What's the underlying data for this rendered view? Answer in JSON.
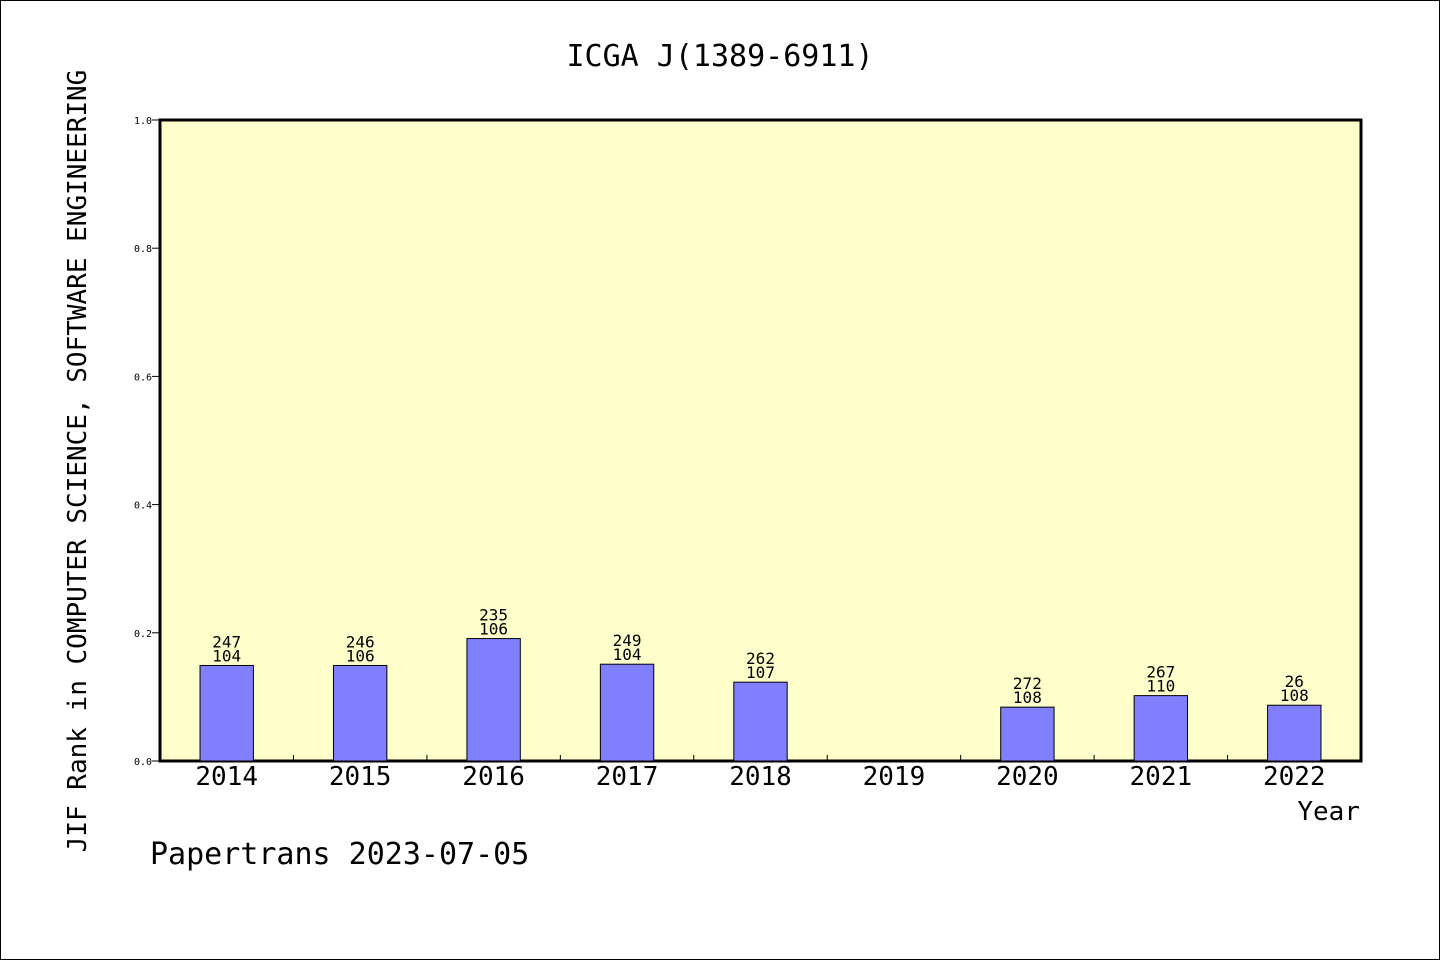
{
  "chart_data": {
    "type": "bar",
    "title": "ICGA J(1389-6911)",
    "xlabel": "Year",
    "ylabel": "JIF Rank in COMPUTER SCIENCE, SOFTWARE ENGINEERING",
    "ylim": [
      0,
      1.0
    ],
    "yticks": [
      "0.0",
      "0.2",
      "0.4",
      "0.6",
      "0.8",
      "1.0"
    ],
    "categories": [
      "2014",
      "2015",
      "2016",
      "2017",
      "2018",
      "2019",
      "2020",
      "2021",
      "2022"
    ],
    "values": [
      0.149,
      0.149,
      0.191,
      0.151,
      0.123,
      null,
      0.084,
      0.102,
      0.087
    ],
    "labels_top": [
      "247",
      "246",
      "235",
      "249",
      "262",
      "",
      "272",
      "267",
      "26"
    ],
    "labels_bottom": [
      "104",
      "106",
      "106",
      "104",
      "107",
      "",
      "108",
      "110",
      "108"
    ],
    "grid": false,
    "colors": {
      "plot_background": "#ffffcc",
      "bar_fill": "#8080ff",
      "bar_stroke": "#000000"
    }
  },
  "footer": {
    "source": "Papertrans 2023-07-05"
  }
}
